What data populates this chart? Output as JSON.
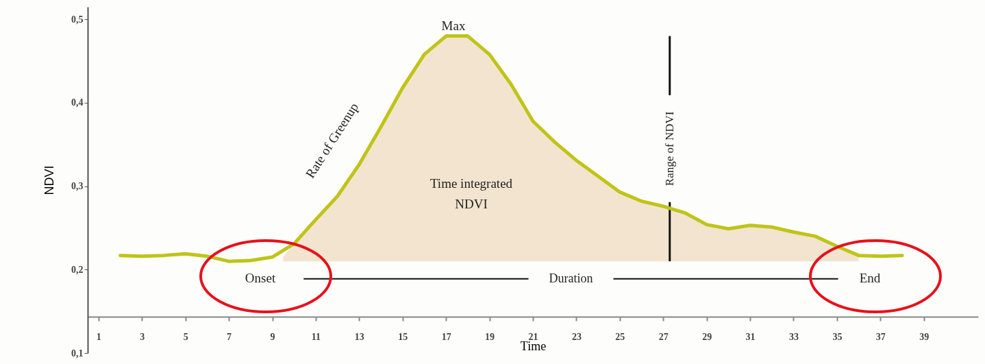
{
  "chart_data": {
    "type": "line",
    "xlabel": "Time",
    "ylabel": "NDVI",
    "xlim": [
      0.5,
      41.5
    ],
    "ylim": [
      0.1,
      0.515
    ],
    "xticks": [
      1,
      3,
      5,
      7,
      9,
      11,
      13,
      15,
      17,
      19,
      21,
      23,
      25,
      27,
      29,
      31,
      33,
      35,
      37,
      39
    ],
    "yticks": [
      {
        "value": 0.1,
        "label": "0,1"
      },
      {
        "value": 0.2,
        "label": "0,2"
      },
      {
        "value": 0.3,
        "label": "0,3"
      },
      {
        "value": 0.4,
        "label": "0,4"
      },
      {
        "value": 0.5,
        "label": "0,5"
      }
    ],
    "series": [
      {
        "type": "area",
        "color": "#f3e4cf",
        "x": [
          9.5,
          10,
          11,
          12,
          13,
          14,
          15,
          16,
          17,
          18,
          19,
          20,
          21,
          22,
          23,
          24,
          25,
          26,
          27,
          28,
          29,
          30,
          31,
          32,
          33,
          34,
          35,
          36
        ],
        "values": [
          0.215,
          0.231,
          0.26,
          0.288,
          0.326,
          0.371,
          0.418,
          0.458,
          0.48,
          0.48,
          0.458,
          0.422,
          0.378,
          0.353,
          0.331,
          0.312,
          0.293,
          0.282,
          0.276,
          0.268,
          0.254,
          0.249,
          0.253,
          0.251,
          0.245,
          0.24,
          0.228,
          0.217
        ]
      },
      {
        "color": "#bfc418",
        "x": [
          2,
          3,
          4,
          5,
          6,
          7,
          8,
          9,
          10,
          11,
          12,
          13,
          14,
          15,
          16,
          17,
          18,
          19,
          20,
          21,
          22,
          23,
          24,
          25,
          26,
          27,
          28,
          29,
          30,
          31,
          32,
          33,
          34,
          35,
          36,
          37,
          38
        ],
        "values": [
          0.217,
          0.216,
          0.217,
          0.219,
          0.216,
          0.21,
          0.211,
          0.215,
          0.231,
          0.26,
          0.288,
          0.326,
          0.371,
          0.418,
          0.458,
          0.48,
          0.48,
          0.458,
          0.422,
          0.378,
          0.353,
          0.331,
          0.312,
          0.293,
          0.282,
          0.276,
          0.268,
          0.254,
          0.249,
          0.253,
          0.251,
          0.245,
          0.24,
          0.228,
          0.217,
          0.216,
          0.217
        ]
      }
    ],
    "ref_lines": [
      {
        "axis": "x",
        "value": 27.3,
        "label": "Range of NDVI",
        "color": "#111111"
      },
      {
        "axis": "y",
        "value": 0.189,
        "label": "Duration",
        "color": "#111111"
      }
    ],
    "annotations": [
      "Max",
      "Rate of Greenup",
      "Time integrated\nNDVI",
      "Onset",
      "End"
    ]
  }
}
